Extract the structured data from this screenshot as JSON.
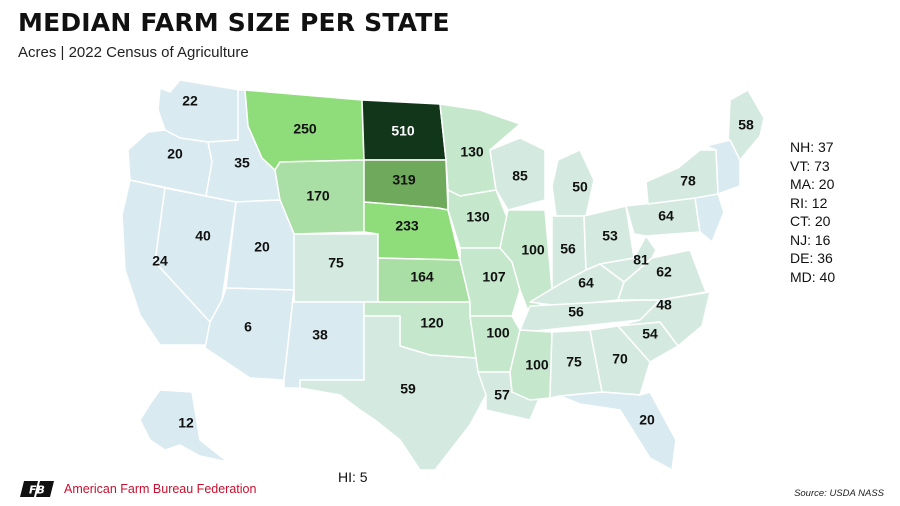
{
  "title": "MEDIAN FARM SIZE PER STATE",
  "subtitle": "Acres | 2022 Census of Agriculture",
  "colors": {
    "scale_lowest": "#d9eaf0",
    "scale_low": "#d4e9e0",
    "scale_mid": "#c5e7cc",
    "scale_midhigh": "#a9dea4",
    "scale_high": "#8fdc7b",
    "scale_higher": "#6faa5c",
    "scale_highest": "#11361a",
    "brand_red": "#c8102e"
  },
  "states": [
    {
      "id": "WA",
      "value": 22
    },
    {
      "id": "OR",
      "value": 20
    },
    {
      "id": "CA",
      "value": 24
    },
    {
      "id": "NV",
      "value": 40
    },
    {
      "id": "ID",
      "value": 35
    },
    {
      "id": "MT",
      "value": 250
    },
    {
      "id": "WY",
      "value": 170
    },
    {
      "id": "UT",
      "value": 20
    },
    {
      "id": "AZ",
      "value": 6
    },
    {
      "id": "CO",
      "value": 75
    },
    {
      "id": "NM",
      "value": 38
    },
    {
      "id": "ND",
      "value": 510
    },
    {
      "id": "SD",
      "value": 319
    },
    {
      "id": "NE",
      "value": 233
    },
    {
      "id": "KS",
      "value": 164
    },
    {
      "id": "OK",
      "value": 120
    },
    {
      "id": "TX",
      "value": 59
    },
    {
      "id": "MN",
      "value": 130
    },
    {
      "id": "IA",
      "value": 130
    },
    {
      "id": "MO",
      "value": 107
    },
    {
      "id": "AR",
      "value": 100
    },
    {
      "id": "LA",
      "value": 57
    },
    {
      "id": "WI",
      "value": 85
    },
    {
      "id": "IL",
      "value": 100
    },
    {
      "id": "MI",
      "value": 50
    },
    {
      "id": "IN",
      "value": 56
    },
    {
      "id": "OH",
      "value": 53
    },
    {
      "id": "KY",
      "value": 64
    },
    {
      "id": "TN",
      "value": 56
    },
    {
      "id": "MS",
      "value": 100
    },
    {
      "id": "AL",
      "value": 75
    },
    {
      "id": "GA",
      "value": 70
    },
    {
      "id": "FL",
      "value": 20
    },
    {
      "id": "SC",
      "value": 54
    },
    {
      "id": "NC",
      "value": 48
    },
    {
      "id": "VA",
      "value": 62
    },
    {
      "id": "WV",
      "value": 81
    },
    {
      "id": "PA",
      "value": 64
    },
    {
      "id": "NY",
      "value": 78
    },
    {
      "id": "ME",
      "value": 58
    },
    {
      "id": "AK",
      "value": 12
    }
  ],
  "small_states": [
    "NH: 37",
    "VT: 73",
    "MA: 20",
    "RI: 12",
    "CT: 20",
    "NJ: 16",
    "DE: 36",
    "MD: 40"
  ],
  "hawaii_note": "HI: 5",
  "source": "Source: USDA NASS",
  "brand": {
    "name": "American Farm Bureau Federation",
    "logo_text": "FB",
    "logo_icon": "farm-bureau-logo-icon"
  }
}
